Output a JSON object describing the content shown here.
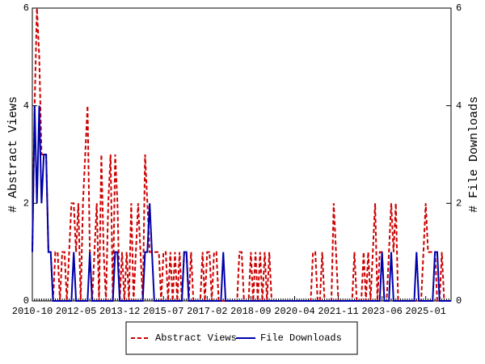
{
  "chart_data": {
    "type": "line",
    "categories": [
      "2010-10",
      null,
      null,
      null,
      null,
      null,
      null,
      null,
      null,
      null,
      null,
      null,
      null,
      null,
      null,
      null,
      null,
      null,
      null,
      "2012-05",
      null,
      null,
      null,
      null,
      null,
      null,
      null,
      null,
      null,
      null,
      null,
      null,
      null,
      null,
      null,
      null,
      null,
      null,
      "2013-12",
      null,
      null,
      null,
      null,
      null,
      null,
      null,
      null,
      null,
      null,
      null,
      null,
      null,
      null,
      null,
      null,
      null,
      null,
      "2015-07",
      null,
      null,
      null,
      null,
      null,
      null,
      null,
      null,
      null,
      null,
      null,
      null,
      null,
      null,
      null,
      null,
      null,
      null,
      "2017-02",
      null,
      null,
      null,
      null,
      null,
      null,
      null,
      null,
      null,
      null,
      null,
      null,
      null,
      null,
      null,
      null,
      null,
      null,
      "2018-09",
      null,
      null,
      null,
      null,
      null,
      null,
      null,
      null,
      null,
      null,
      null,
      null,
      null,
      null,
      null,
      null,
      null,
      null,
      "2020-04",
      null,
      null,
      null,
      null,
      null,
      null,
      null,
      null,
      null,
      null,
      null,
      null,
      null,
      null,
      null,
      null,
      null,
      null,
      "2021-11",
      null,
      null,
      null,
      null,
      null,
      null,
      null,
      null,
      null,
      null,
      null,
      null,
      null,
      null,
      null,
      null,
      null,
      null,
      "2023-06",
      null,
      null,
      null,
      null,
      null,
      null,
      null,
      null,
      null,
      null,
      null,
      null,
      null,
      null,
      null,
      null,
      null,
      null,
      "2025-01",
      null,
      null,
      null,
      null,
      null,
      null,
      null,
      null,
      null,
      null,
      null
    ],
    "y_label": "# Abstract Views",
    "y2_label": "# File Downloads",
    "ylim": [
      0,
      6
    ],
    "yticks": [
      0,
      2,
      4,
      6
    ],
    "y2lim": [
      0,
      6
    ],
    "y2ticks": [
      0,
      2,
      4,
      6
    ],
    "legend": "bottom",
    "series": [
      {
        "name": "Abstract Views",
        "color": "#cc0000",
        "dash": true,
        "values": [
          1,
          4,
          6,
          5,
          3,
          3,
          3,
          1,
          1,
          0,
          1,
          1,
          0,
          1,
          1,
          0,
          1,
          2,
          2,
          1,
          2,
          0,
          2,
          3,
          4,
          1,
          0,
          1,
          2,
          0,
          3,
          1,
          0,
          2,
          3,
          0,
          3,
          2,
          0,
          1,
          0,
          1,
          0,
          2,
          0,
          1,
          2,
          1,
          0,
          3,
          2,
          1,
          1,
          1,
          1,
          1,
          0,
          1,
          1,
          0,
          1,
          0,
          1,
          0,
          1,
          0,
          1,
          1,
          0,
          1,
          0,
          0,
          0,
          0,
          1,
          0,
          1,
          1,
          0,
          1,
          1,
          0,
          0,
          0,
          0,
          0,
          0,
          0,
          0,
          0,
          1,
          1,
          0,
          0,
          0,
          1,
          0,
          1,
          0,
          1,
          0,
          1,
          0,
          1,
          0,
          0,
          0,
          0,
          0,
          0,
          0,
          0,
          0,
          0,
          0,
          0,
          0,
          0,
          0,
          0,
          0,
          0,
          1,
          1,
          0,
          0,
          1,
          0,
          0,
          0,
          0,
          2,
          1,
          0,
          0,
          0,
          0,
          0,
          0,
          0,
          1,
          0,
          0,
          0,
          1,
          0,
          1,
          0,
          1,
          2,
          0,
          1,
          1,
          0,
          0,
          1,
          2,
          1,
          2,
          0,
          0,
          0,
          0,
          0,
          0,
          0,
          0,
          0,
          0,
          0,
          1,
          2,
          1,
          1,
          1,
          1,
          0,
          0,
          1,
          0,
          0,
          0,
          0
        ]
      },
      {
        "name": "File Downloads",
        "color": "#0000aa",
        "dash": false,
        "axis": "y2",
        "values": [
          1,
          4,
          2,
          4,
          2,
          3,
          3,
          1,
          1,
          0,
          0,
          0,
          0,
          0,
          0,
          0,
          0,
          0,
          1,
          0,
          0,
          0,
          0,
          0,
          0,
          1,
          0,
          0,
          0,
          0,
          0,
          0,
          0,
          0,
          0,
          0,
          1,
          1,
          0,
          0,
          0,
          0,
          0,
          0,
          0,
          0,
          0,
          0,
          0,
          1,
          1,
          2,
          1,
          0,
          0,
          0,
          0,
          0,
          0,
          0,
          0,
          0,
          0,
          0,
          0,
          0,
          1,
          1,
          0,
          0,
          0,
          0,
          0,
          0,
          0,
          0,
          0,
          0,
          0,
          0,
          0,
          0,
          0,
          1,
          0,
          0,
          0,
          0,
          0,
          0,
          0,
          0,
          0,
          0,
          0,
          0,
          0,
          0,
          0,
          0,
          0,
          0,
          0,
          0,
          0,
          0,
          0,
          0,
          0,
          0,
          0,
          0,
          0,
          0,
          0,
          0,
          0,
          0,
          0,
          0,
          0,
          0,
          0,
          0,
          0,
          0,
          0,
          0,
          0,
          0,
          0,
          0,
          0,
          0,
          0,
          0,
          0,
          0,
          0,
          0,
          0,
          0,
          0,
          0,
          0,
          0,
          0,
          0,
          0,
          0,
          0,
          0,
          1,
          0,
          0,
          0,
          1,
          0,
          0,
          0,
          0,
          0,
          0,
          0,
          0,
          0,
          0,
          1,
          0,
          0,
          0,
          0,
          0,
          0,
          0,
          1,
          1,
          0,
          0,
          0,
          0,
          0,
          0
        ]
      }
    ]
  }
}
